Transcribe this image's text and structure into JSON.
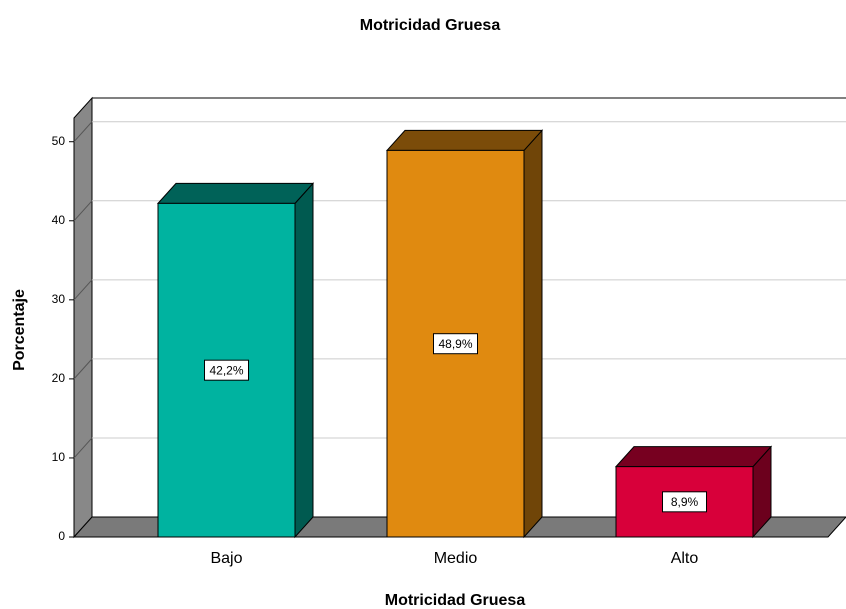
{
  "chart_data": {
    "type": "bar3d",
    "title": "Motricidad Gruesa",
    "x_label": "Motricidad Gruesa",
    "y_label": "Porcentaje",
    "categories": [
      "Bajo",
      "Medio",
      "Alto"
    ],
    "values": [
      42.2,
      48.9,
      8.9
    ],
    "value_labels": [
      "42,2%",
      "48,9%",
      "8,9%"
    ],
    "colors": [
      "#00b3a0",
      "#e08a10",
      "#d8003a"
    ],
    "ylim": [
      0,
      53
    ],
    "yticks": [
      0,
      10,
      20,
      30,
      40,
      50
    ],
    "grid": true
  }
}
